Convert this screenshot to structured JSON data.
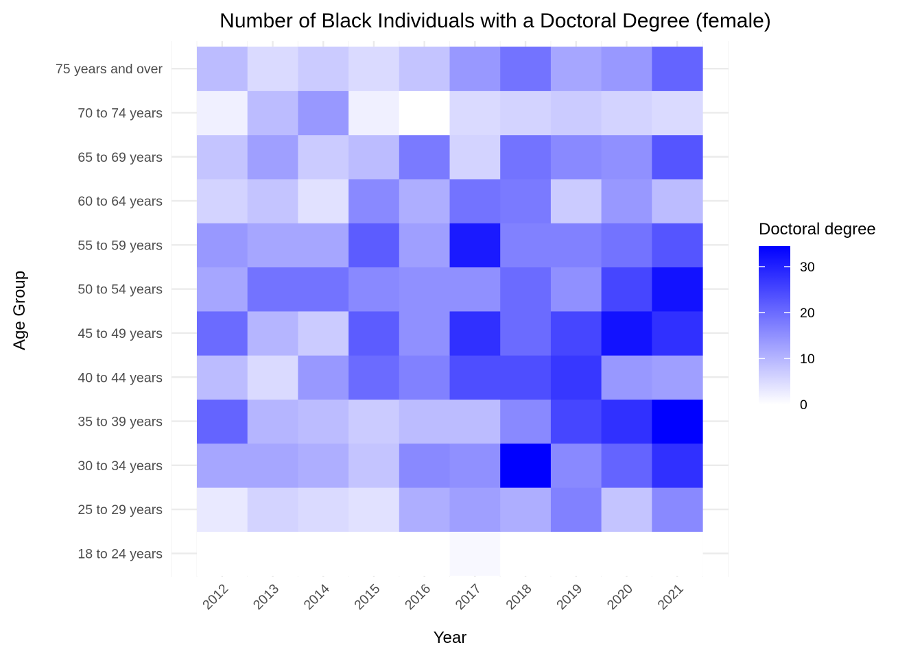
{
  "chart_data": {
    "type": "heatmap",
    "title": "Number of Black Individuals with a Doctoral Degree (female)",
    "xlabel": "Year",
    "ylabel": "Age Group",
    "x": [
      "2012",
      "2013",
      "2014",
      "2015",
      "2016",
      "2017",
      "2018",
      "2019",
      "2020",
      "2021"
    ],
    "y": [
      "18 to 24 years",
      "25 to 29 years",
      "30 to 34 years",
      "35 to 39 years",
      "40 to 44 years",
      "45 to 49 years",
      "50 to 54 years",
      "55 to 59 years",
      "60 to 64 years",
      "65 to 69 years",
      "70 to 74 years",
      "75 years and over"
    ],
    "values": [
      [
        0,
        0,
        0,
        0,
        0,
        1,
        0,
        0,
        0,
        0
      ],
      [
        3,
        6,
        5,
        4,
        11,
        13,
        11,
        17,
        8,
        16
      ],
      [
        12,
        12,
        11,
        8,
        16,
        15,
        35,
        16,
        21,
        28
      ],
      [
        21,
        10,
        9,
        7,
        9,
        9,
        16,
        25,
        28,
        35
      ],
      [
        9,
        5,
        14,
        20,
        17,
        24,
        24,
        27,
        14,
        13
      ],
      [
        20,
        10,
        7,
        22,
        15,
        28,
        20,
        25,
        32,
        28
      ],
      [
        12,
        19,
        19,
        16,
        15,
        15,
        20,
        15,
        25,
        32
      ],
      [
        14,
        12,
        12,
        22,
        13,
        31,
        17,
        17,
        19,
        23
      ],
      [
        6,
        8,
        4,
        16,
        11,
        19,
        18,
        7,
        14,
        9
      ],
      [
        8,
        13,
        7,
        9,
        18,
        6,
        19,
        16,
        15,
        23
      ],
      [
        2,
        9,
        14,
        2,
        0,
        5,
        6,
        7,
        6,
        5
      ],
      [
        9,
        5,
        7,
        5,
        8,
        14,
        19,
        12,
        14,
        21
      ]
    ],
    "color_scale": {
      "low": "#ffffff",
      "high": "#0000ff",
      "min": 0,
      "max": 34.5
    },
    "legend": {
      "title": "Doctoral degree",
      "ticks": [
        0,
        10,
        20,
        30
      ],
      "position": "right"
    },
    "grid": true
  }
}
